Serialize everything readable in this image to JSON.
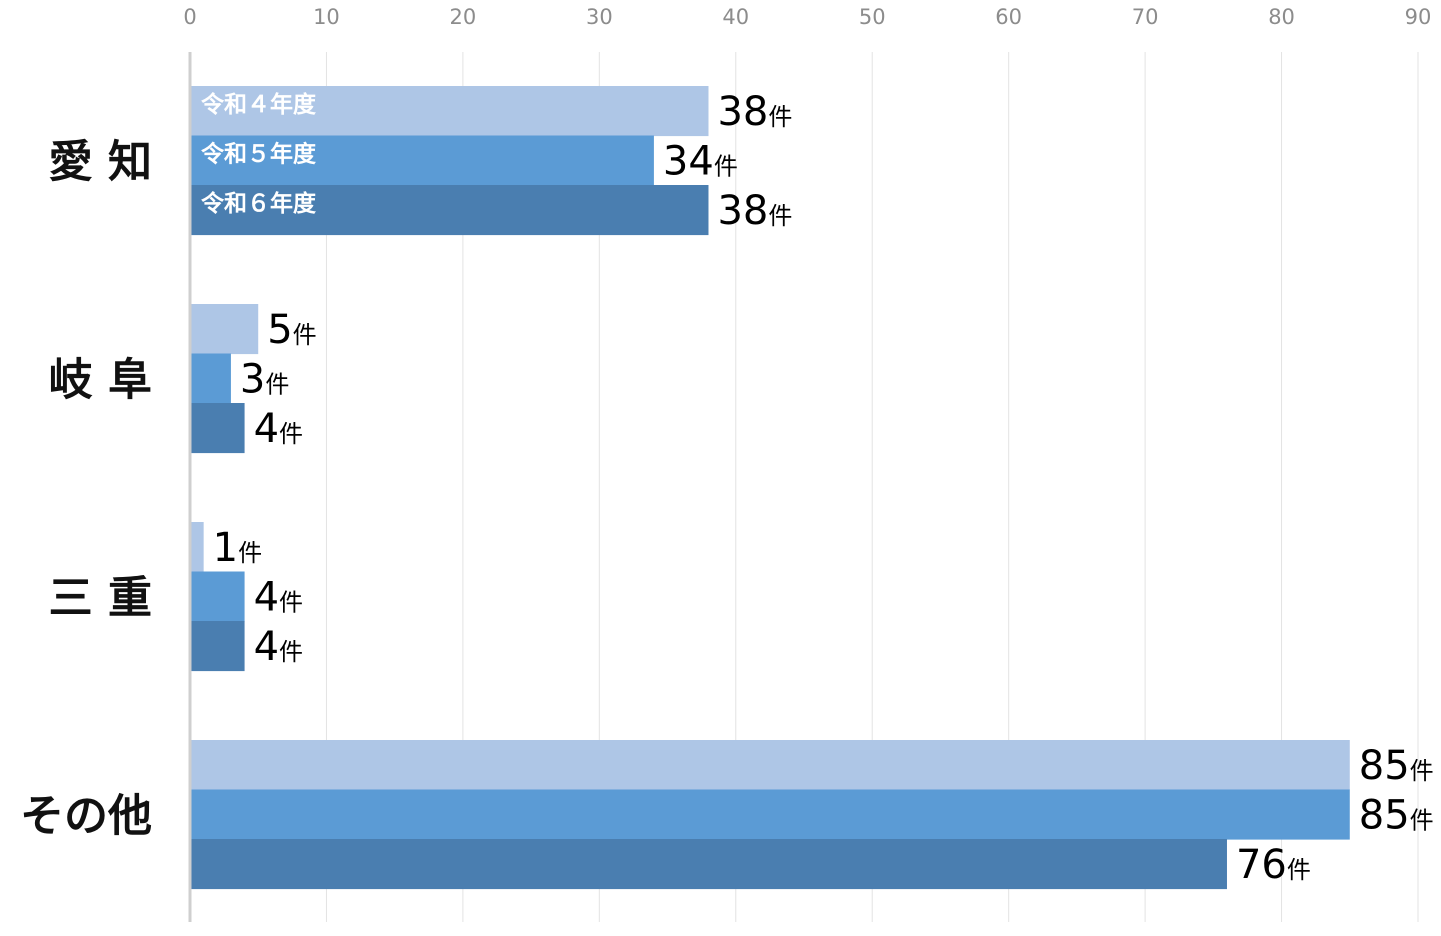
{
  "chart_data": {
    "type": "bar",
    "orientation": "horizontal",
    "categories": [
      "愛 知",
      "岐 阜",
      "三 重",
      "その他"
    ],
    "series": [
      {
        "name": "令和４年度",
        "values": [
          38,
          5,
          1,
          85
        ],
        "color": "#aec6e6"
      },
      {
        "name": "令和５年度",
        "values": [
          34,
          3,
          4,
          85
        ],
        "color": "#5b9bd5"
      },
      {
        "name": "令和６年度",
        "values": [
          38,
          4,
          4,
          76
        ],
        "color": "#4a7eb0"
      }
    ],
    "value_unit": "件",
    "xlim": [
      0,
      90
    ],
    "x_ticks": [
      "0",
      "10",
      "20",
      "30",
      "40",
      "50",
      "60",
      "70",
      "80",
      "90"
    ],
    "grid": true,
    "legend": "inside-bars"
  }
}
